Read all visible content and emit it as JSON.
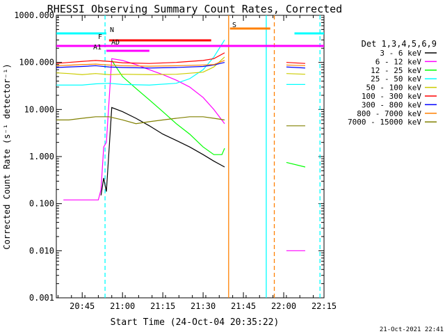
{
  "chart_data": {
    "type": "line",
    "title": "RHESSI Observing Summary Count Rates, Corrected",
    "xlabel": "Start Time (24-Oct-04 20:35:22)",
    "ylabel": "Corrected Count Rate (s⁻¹ detector⁻¹)",
    "yscale": "log",
    "ylim": [
      0.001,
      1000
    ],
    "y_ticks": [
      "0.001",
      "0.010",
      "0.100",
      "1.000",
      "10.000",
      "100.000",
      "1000.000"
    ],
    "x_axis_minutes_from_2030": [
      5.367,
      105
    ],
    "x_ticks": [
      {
        "label": "20:45",
        "min": 15
      },
      {
        "label": "21:00",
        "min": 30
      },
      {
        "label": "21:15",
        "min": 45
      },
      {
        "label": "21:30",
        "min": 60
      },
      {
        "label": "21:45",
        "min": 75
      },
      {
        "label": "22:00",
        "min": 90
      },
      {
        "label": "22:15",
        "min": 105
      }
    ],
    "legend_title": "Det 1,3,4,5,6,9",
    "legend_placement": "right",
    "series": [
      {
        "name": "3 - 6 keV",
        "color": "#000000",
        "x": [
          14.5,
          17,
          19,
          20,
          20.5,
          20.5,
          22,
          23,
          24,
          26,
          30,
          35,
          40,
          45,
          50,
          55,
          60,
          64,
          68
        ],
        "y": [
          null,
          null,
          null,
          null,
          null,
          null,
          0.15,
          0.35,
          0.18,
          11,
          9,
          6.5,
          4.5,
          3,
          2.2,
          1.6,
          1.1,
          0.8,
          0.6
        ]
      },
      {
        "name": "6 - 12 keV",
        "color": "#ff00ff",
        "x": [
          8,
          12,
          15,
          17,
          20,
          21,
          22,
          23,
          24,
          26,
          30,
          35,
          40,
          45,
          50,
          55,
          60,
          64,
          68,
          91,
          98
        ],
        "y": [
          0.12,
          0.12,
          0.12,
          0.12,
          0.12,
          0.12,
          0.2,
          1.6,
          2.0,
          120,
          110,
          90,
          70,
          55,
          42,
          30,
          18,
          10,
          5,
          0.01,
          0.01
        ]
      },
      {
        "name": "12 - 25 keV",
        "color": "#00ff00",
        "x": [
          5.4,
          15,
          24,
          26,
          30,
          35,
          40,
          45,
          50,
          55,
          60,
          64,
          67,
          68,
          91,
          98
        ],
        "y": [
          null,
          null,
          null,
          110,
          50,
          28,
          16,
          9,
          5,
          3,
          1.6,
          1.1,
          1.1,
          1.5,
          0.75,
          0.6
        ]
      },
      {
        "name": "25 - 50 keV",
        "color": "#00ffff",
        "x": [
          5.4,
          10,
          15,
          20,
          25,
          30,
          40,
          50,
          55,
          60,
          64,
          68,
          91,
          98
        ],
        "y": [
          33,
          33,
          33,
          35,
          36,
          34,
          33,
          36,
          45,
          70,
          130,
          300,
          34,
          34
        ]
      },
      {
        "name": "50 - 100 keV",
        "color": "#cccc00",
        "x": [
          5.4,
          10,
          15,
          20,
          25,
          30,
          40,
          50,
          60,
          64,
          68,
          91,
          98
        ],
        "y": [
          60,
          58,
          55,
          58,
          55,
          56,
          55,
          56,
          62,
          80,
          130,
          58,
          56
        ]
      },
      {
        "name": "100 - 300 keV",
        "color": "#ff0000",
        "x": [
          5.4,
          10,
          15,
          20,
          25,
          30,
          40,
          50,
          60,
          64,
          68,
          91,
          98
        ],
        "y": [
          95,
          100,
          105,
          110,
          105,
          98,
          95,
          100,
          110,
          120,
          160,
          100,
          95
        ]
      },
      {
        "name": "300 - 800 keV",
        "color": "#0000ff",
        "x": [
          5.4,
          10,
          15,
          20,
          25,
          30,
          40,
          50,
          60,
          64,
          68,
          91,
          98
        ],
        "y": [
          78,
          80,
          82,
          85,
          80,
          78,
          76,
          78,
          82,
          88,
          100,
          80,
          76
        ]
      },
      {
        "name": "800 - 7000 keV",
        "color": "#ff8000",
        "x": [
          5.4,
          10,
          15,
          20,
          25,
          30,
          40,
          50,
          60,
          64,
          68,
          91,
          98
        ],
        "y": [
          85,
          87,
          90,
          92,
          88,
          85,
          83,
          85,
          88,
          90,
          110,
          88,
          85
        ]
      },
      {
        "name": "7000 - 15000 keV",
        "color": "#808000",
        "x": [
          5.4,
          10,
          15,
          20,
          25,
          30,
          35,
          40,
          45,
          50,
          55,
          60,
          64,
          68,
          91,
          98
        ],
        "y": [
          6,
          6,
          6.5,
          7,
          7,
          6,
          5,
          5.5,
          6,
          6.5,
          7,
          7,
          6.5,
          6,
          4.5,
          4.5
        ]
      }
    ],
    "flag_bars": [
      {
        "label": "N",
        "color": "#00ffff",
        "segments": [
          [
            5.4,
            24
          ],
          [
            94,
            105
          ]
        ]
      },
      {
        "label": "S",
        "color": "#ff8000",
        "segments": [
          [
            70,
            85
          ]
        ]
      },
      {
        "label": "F",
        "color": "#ff0000",
        "segments": [
          [
            25,
            63
          ]
        ]
      },
      {
        "label": "AD",
        "color": "#ff00ff",
        "segments": [
          [
            5.4,
            105
          ]
        ]
      },
      {
        "label": "A1",
        "color": "#ff00ff",
        "segments": [
          [
            24,
            40
          ]
        ]
      }
    ],
    "vertical_lines": [
      {
        "min": 23.5,
        "color": "#00ffff",
        "dash": true
      },
      {
        "min": 69.5,
        "color": "#ff8000",
        "dash": false
      },
      {
        "min": 83.5,
        "color": "#00ffff",
        "dash": false
      },
      {
        "min": 86.5,
        "color": "#ff8000",
        "dash": true
      },
      {
        "min": 103.5,
        "color": "#00ffff",
        "dash": true
      }
    ],
    "footer_date": "21-Oct-2021 22:41"
  }
}
